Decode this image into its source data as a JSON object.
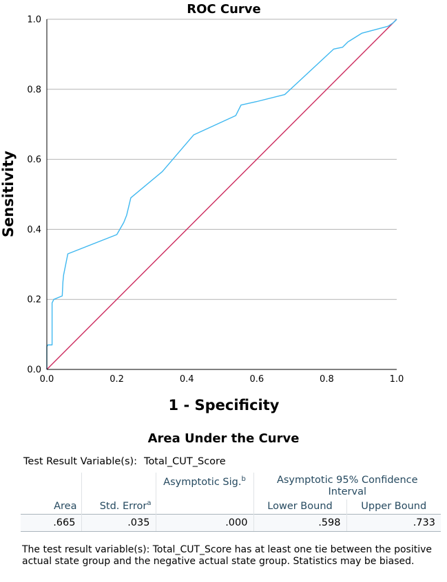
{
  "chart_data": {
    "type": "line",
    "title": "ROC Curve",
    "xlabel": "1 - Specificity",
    "ylabel": "Sensitivity",
    "xlim": [
      0,
      1
    ],
    "ylim": [
      0,
      1
    ],
    "xticks": [
      "0.0",
      "0.2",
      "0.4",
      "0.6",
      "0.8",
      "1.0"
    ],
    "yticks": [
      "0.0",
      "0.2",
      "0.4",
      "0.6",
      "0.8",
      "1.0"
    ],
    "grid": "horizontal",
    "series": [
      {
        "name": "ROC",
        "color": "#3fb8f0",
        "x": [
          0,
          0,
          0.003,
          0.015,
          0.015,
          0.02,
          0.02,
          0.044,
          0.046,
          0.048,
          0.06,
          0.2,
          0.22,
          0.228,
          0.24,
          0.33,
          0.42,
          0.54,
          0.555,
          0.6,
          0.68,
          0.82,
          0.845,
          0.86,
          0.9,
          0.975,
          0.99,
          1.0
        ],
        "y": [
          0,
          0.065,
          0.07,
          0.07,
          0.19,
          0.2,
          0.2,
          0.21,
          0.25,
          0.27,
          0.33,
          0.385,
          0.42,
          0.44,
          0.49,
          0.565,
          0.67,
          0.725,
          0.755,
          0.765,
          0.785,
          0.915,
          0.92,
          0.935,
          0.96,
          0.98,
          0.99,
          1.0
        ]
      },
      {
        "name": "Reference Line",
        "color": "#cc2b5e",
        "x": [
          0,
          1
        ],
        "y": [
          0,
          1
        ]
      }
    ]
  },
  "auc_table": {
    "title": "Area Under the Curve",
    "test_variable_label": "Test Result Variable(s):",
    "test_variable": "Total_CUT_Score",
    "headers": {
      "area": "Area",
      "std_error": "Std. Error",
      "std_error_sup": "a",
      "asym_sig": "Asymptotic Sig.",
      "asym_sig_sup": "b",
      "ci": "Asymptotic 95% Confidence Interval",
      "lower": "Lower Bound",
      "upper": "Upper Bound"
    },
    "row": {
      "area": ".665",
      "std_error": ".035",
      "asym_sig": ".000",
      "lower": ".598",
      "upper": ".733"
    },
    "footnote": "The test result variable(s): Total_CUT_Score has at least one tie between the positive actual state group and the negative actual state group. Statistics may be biased."
  }
}
